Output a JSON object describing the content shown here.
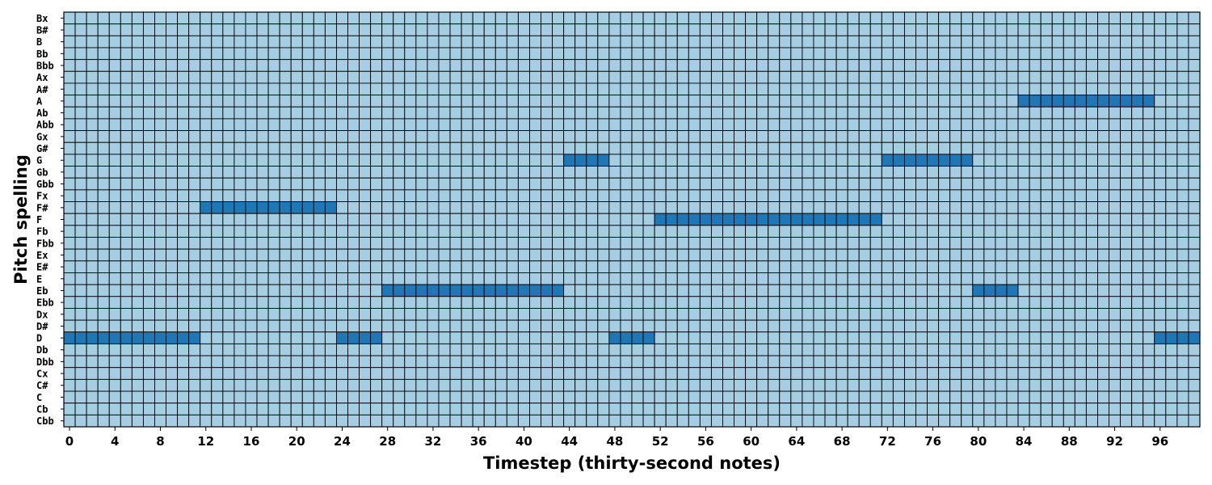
{
  "chart_data": {
    "type": "heatmap",
    "xlabel": "Timestep (thirty-second notes)",
    "ylabel": "Pitch spelling",
    "x_range": [
      0,
      100
    ],
    "x_ticks": [
      0,
      4,
      8,
      12,
      16,
      20,
      24,
      28,
      32,
      36,
      40,
      44,
      48,
      52,
      56,
      60,
      64,
      68,
      72,
      76,
      80,
      84,
      88,
      92,
      96
    ],
    "y_categories": [
      "Bx",
      "B#",
      "B",
      "Bb",
      "Bbb",
      "Ax",
      "A#",
      "A",
      "Ab",
      "Abb",
      "Gx",
      "G#",
      "G",
      "Gb",
      "Gbb",
      "Fx",
      "F#",
      "F",
      "Fb",
      "Fbb",
      "Ex",
      "E#",
      "E",
      "Eb",
      "Ebb",
      "Dx",
      "D#",
      "D",
      "Db",
      "Dbb",
      "Cx",
      "C#",
      "C",
      "Cb",
      "Cbb"
    ],
    "colors": {
      "off": "#a6cee3",
      "on": "#1f78b4",
      "grid": "#000000"
    },
    "grid": true,
    "notes": [
      {
        "pitch": "D",
        "start": 0,
        "end": 12
      },
      {
        "pitch": "F#",
        "start": 12,
        "end": 24
      },
      {
        "pitch": "D",
        "start": 24,
        "end": 28
      },
      {
        "pitch": "Eb",
        "start": 28,
        "end": 44
      },
      {
        "pitch": "G",
        "start": 44,
        "end": 48
      },
      {
        "pitch": "D",
        "start": 48,
        "end": 52
      },
      {
        "pitch": "F",
        "start": 52,
        "end": 72
      },
      {
        "pitch": "G",
        "start": 72,
        "end": 80
      },
      {
        "pitch": "Eb",
        "start": 80,
        "end": 84
      },
      {
        "pitch": "A",
        "start": 84,
        "end": 96
      },
      {
        "pitch": "D",
        "start": 96,
        "end": 100
      }
    ]
  }
}
